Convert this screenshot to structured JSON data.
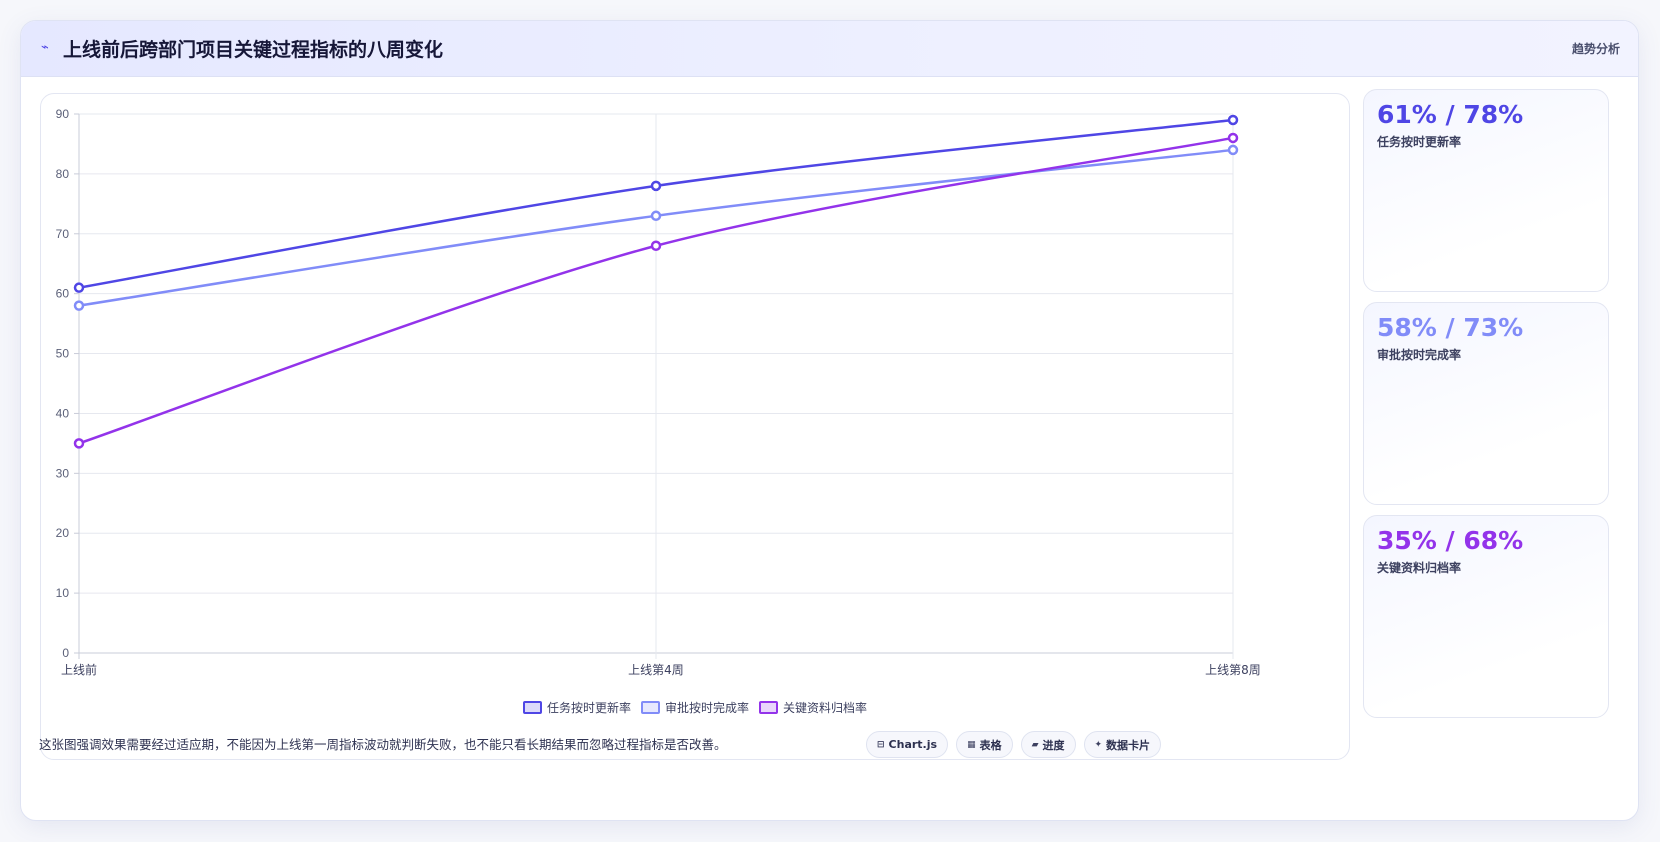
{
  "header": {
    "icon": "trend-line-icon",
    "title": "上线前后跨部门项目关键过程指标的八周变化",
    "tag": "趋势分析"
  },
  "chart_data": {
    "type": "line",
    "categories": [
      "上线前",
      "上线第4周",
      "上线第8周"
    ],
    "series": [
      {
        "name": "任务按时更新率",
        "values": [
          61,
          78,
          89
        ],
        "color": "#4f46e5"
      },
      {
        "name": "审批按时完成率",
        "values": [
          58,
          73,
          84
        ],
        "color": "#818cf8"
      },
      {
        "name": "关键资料归档率",
        "values": [
          35,
          68,
          86
        ],
        "color": "#9333ea"
      }
    ],
    "ylim": [
      0,
      90
    ],
    "yticks": [
      0,
      10,
      20,
      30,
      40,
      50,
      60,
      70,
      80,
      90
    ],
    "grid": true,
    "legend": "bottom"
  },
  "stats": [
    {
      "value": "61% / 78%",
      "label": "任务按时更新率",
      "color": "#4f46e5"
    },
    {
      "value": "58% / 73%",
      "label": "审批按时完成率",
      "color": "#818cf8"
    },
    {
      "value": "35% / 68%",
      "label": "关键资料归档率",
      "color": "#9333ea"
    }
  ],
  "footer": {
    "note": "这张图强调效果需要经过适应期，不能因为上线第一周指标波动就判断失败，也不能只看长期结果而忽略过程指标是否改善。",
    "chips": [
      {
        "icon": "chart-icon",
        "glyph": "⊟",
        "label": "Chart.js"
      },
      {
        "icon": "table-icon",
        "glyph": "▦",
        "label": "表格"
      },
      {
        "icon": "progress-icon",
        "glyph": "▰",
        "label": "进度"
      },
      {
        "icon": "sparkle-icon",
        "glyph": "✦",
        "label": "数据卡片"
      }
    ]
  }
}
